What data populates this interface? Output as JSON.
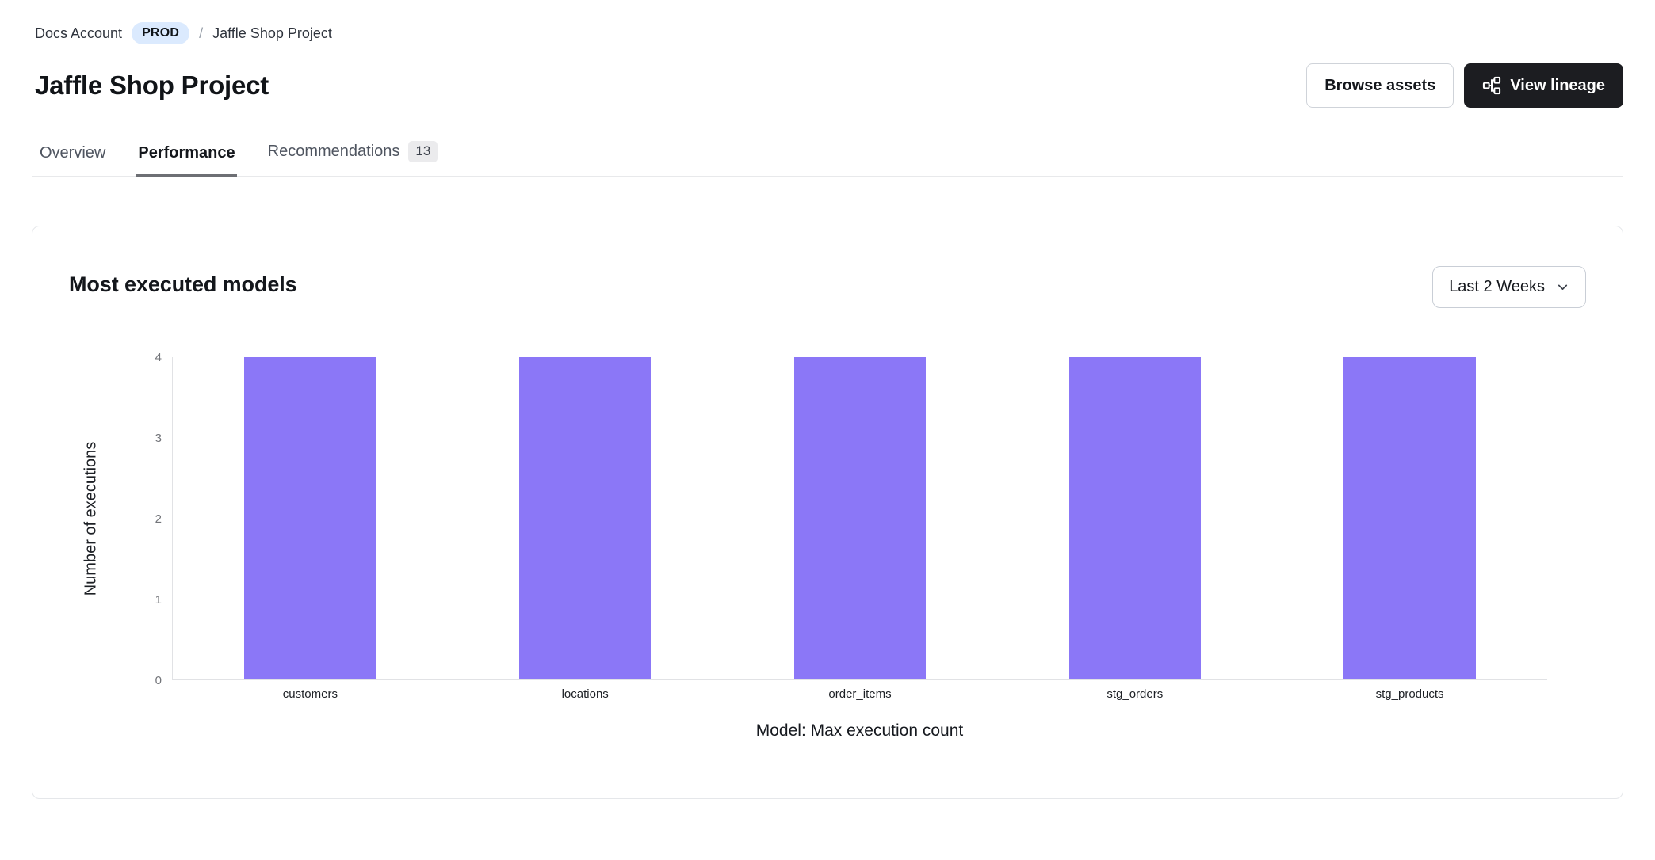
{
  "breadcrumb": {
    "account": "Docs Account",
    "env_badge": "PROD",
    "separator": "/",
    "project": "Jaffle Shop Project"
  },
  "header": {
    "title": "Jaffle Shop Project",
    "browse_assets_label": "Browse assets",
    "view_lineage_label": "View lineage"
  },
  "tabs": [
    {
      "label": "Overview",
      "active": false
    },
    {
      "label": "Performance",
      "active": true
    },
    {
      "label": "Recommendations",
      "active": false,
      "badge": "13"
    }
  ],
  "card": {
    "title": "Most executed models",
    "time_range": {
      "value": "Last 2 Weeks"
    }
  },
  "chart_data": {
    "type": "bar",
    "categories": [
      "customers",
      "locations",
      "order_items",
      "stg_orders",
      "stg_products"
    ],
    "values": [
      4,
      4,
      4,
      4,
      4
    ],
    "title": "Most executed models",
    "xlabel": "Model: Max execution count",
    "ylabel": "Number of executions",
    "ylim": [
      0,
      4
    ],
    "yticks": [
      0,
      1,
      2,
      3,
      4
    ],
    "bar_color": "#8b77f7",
    "bar_width_fraction": 0.48,
    "grid": false,
    "legend": false
  },
  "colors": {
    "accent_purple": "#8b77f7",
    "env_badge_bg": "#dbeafe",
    "dark_button_bg": "#1c1d21",
    "card_border": "#e5e7ea",
    "axis_line": "#e1e2e5",
    "tick_text": "#73757a"
  }
}
